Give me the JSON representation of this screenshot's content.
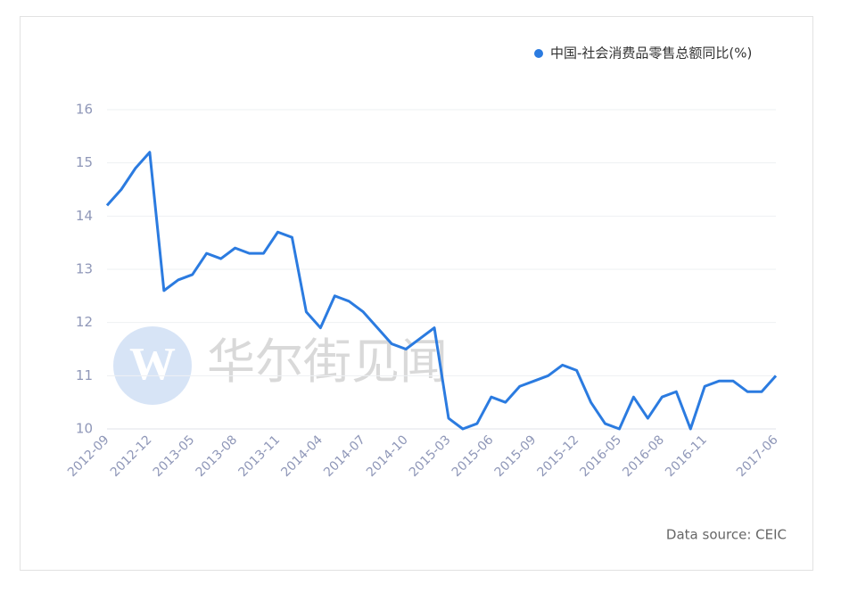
{
  "chart_data": {
    "type": "line",
    "legend_position": "top-right",
    "watermark": "华尔街见闻",
    "source": "Data source: CEIC",
    "categories": [
      "2012-09",
      null,
      null,
      "2012-12",
      null,
      null,
      "2013-05",
      null,
      null,
      "2013-08",
      null,
      null,
      "2013-11",
      null,
      null,
      "2014-04",
      null,
      null,
      "2014-07",
      null,
      null,
      "2014-10",
      null,
      null,
      "2015-03",
      null,
      null,
      "2015-06",
      null,
      null,
      "2015-09",
      null,
      null,
      "2015-12",
      null,
      null,
      "2016-05",
      null,
      null,
      "2016-08",
      null,
      null,
      "2016-11",
      null,
      null,
      null,
      null,
      "2017-06"
    ],
    "series": [
      {
        "name": "中国-社会消费品零售总额同比(%)",
        "color": "#2b7be0",
        "values": [
          14.2,
          14.5,
          14.9,
          15.2,
          12.6,
          12.8,
          12.9,
          13.3,
          13.2,
          13.4,
          13.3,
          13.3,
          13.7,
          13.6,
          12.2,
          11.9,
          12.5,
          12.4,
          12.2,
          11.9,
          11.6,
          11.5,
          11.7,
          11.9,
          10.2,
          10.0,
          10.1,
          10.6,
          10.5,
          10.8,
          10.9,
          11.0,
          11.2,
          11.1,
          10.5,
          10.1,
          10.0,
          10.6,
          10.2,
          10.6,
          10.7,
          10.0,
          10.8,
          10.9,
          10.9,
          10.7,
          10.7,
          11.0
        ]
      }
    ],
    "ylim": [
      10,
      16
    ],
    "yticks": [
      10,
      11,
      12,
      13,
      14,
      15,
      16
    ],
    "grid": true
  }
}
